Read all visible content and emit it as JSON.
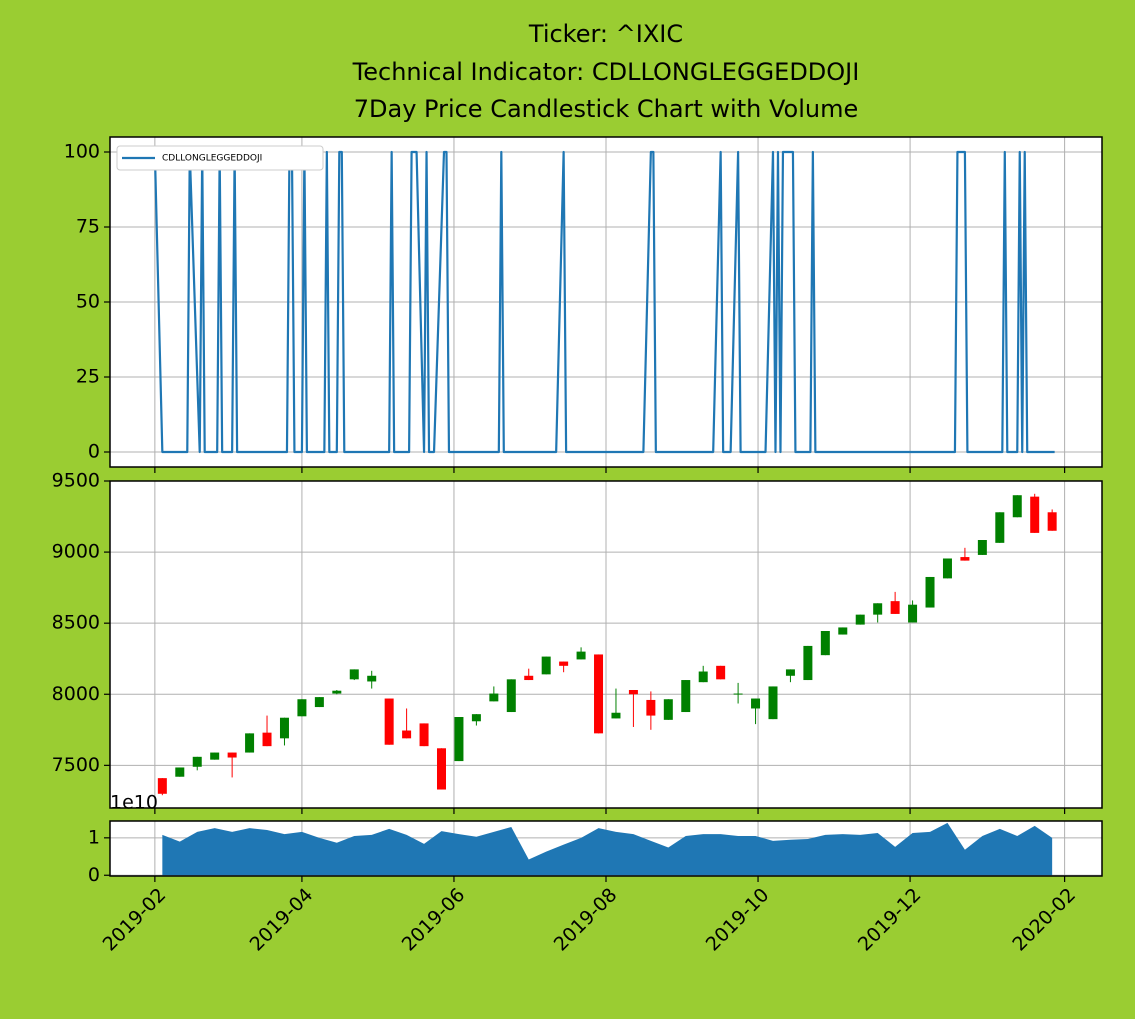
{
  "chart_data": [
    {
      "type": "line",
      "title": [
        "Ticker: ^IXIC",
        "Technical Indicator: CDLLONGLEGGEDDOJI",
        "7Day Price Candlestick Chart with Volume"
      ],
      "x": [
        "2019-02-01",
        "2019-02-04",
        "2019-02-14",
        "2019-02-15",
        "2019-02-19",
        "2019-02-20",
        "2019-02-21",
        "2019-02-26",
        "2019-02-27",
        "2019-02-28",
        "2019-03-04",
        "2019-03-05",
        "2019-03-06",
        "2019-03-26",
        "2019-03-27",
        "2019-03-28",
        "2019-03-29",
        "2019-04-01",
        "2019-04-02",
        "2019-04-03",
        "2019-04-10",
        "2019-04-11",
        "2019-04-12",
        "2019-04-15",
        "2019-04-16",
        "2019-04-17",
        "2019-04-18",
        "2019-05-06",
        "2019-05-07",
        "2019-05-08",
        "2019-05-14",
        "2019-05-15",
        "2019-05-17",
        "2019-05-20",
        "2019-05-21",
        "2019-05-22",
        "2019-05-24",
        "2019-05-28",
        "2019-05-29",
        "2019-05-30",
        "2019-06-19",
        "2019-06-20",
        "2019-06-21",
        "2019-07-12",
        "2019-07-15",
        "2019-07-16",
        "2019-08-16",
        "2019-08-19",
        "2019-08-20",
        "2019-08-21",
        "2019-09-13",
        "2019-09-16",
        "2019-09-17",
        "2019-09-20",
        "2019-09-23",
        "2019-09-24",
        "2019-10-04",
        "2019-10-07",
        "2019-10-08",
        "2019-10-09",
        "2019-10-10",
        "2019-10-11",
        "2019-10-15",
        "2019-10-16",
        "2019-10-22",
        "2019-10-23",
        "2019-10-24",
        "2019-12-19",
        "2019-12-20",
        "2019-12-23",
        "2019-12-24",
        "2020-01-07",
        "2020-01-08",
        "2020-01-09",
        "2020-01-13",
        "2020-01-14",
        "2020-01-15",
        "2020-01-16",
        "2020-01-17",
        "2020-01-28"
      ],
      "series": [
        {
          "name": "CDLLONGLEGGEDDOJI",
          "color": "#1f77b4",
          "values": [
            100,
            0,
            0,
            100,
            0,
            100,
            0,
            0,
            100,
            0,
            0,
            100,
            0,
            0,
            100,
            100,
            0,
            0,
            100,
            0,
            0,
            100,
            0,
            0,
            100,
            100,
            0,
            0,
            100,
            0,
            0,
            100,
            100,
            0,
            100,
            0,
            0,
            100,
            100,
            0,
            0,
            100,
            0,
            0,
            100,
            0,
            0,
            100,
            100,
            0,
            0,
            100,
            0,
            0,
            100,
            0,
            0,
            100,
            0,
            100,
            0,
            100,
            100,
            0,
            0,
            100,
            0,
            0,
            100,
            100,
            0,
            0,
            100,
            0,
            0,
            100,
            0,
            100,
            0,
            0
          ]
        }
      ],
      "xlim": [
        "2019-01-14",
        "2020-02-16"
      ],
      "xticks": [
        "2019-02",
        "2019-04",
        "2019-06",
        "2019-08",
        "2019-10",
        "2019-12",
        "2020-02"
      ],
      "ylim": [
        -5,
        105
      ],
      "yticks": [
        0,
        25,
        50,
        75,
        100
      ],
      "grid": true,
      "legend": "upper left"
    },
    {
      "type": "candlestick",
      "x": [
        "2019-02-04",
        "2019-02-11",
        "2019-02-18",
        "2019-02-25",
        "2019-03-04",
        "2019-03-11",
        "2019-03-18",
        "2019-03-25",
        "2019-04-01",
        "2019-04-08",
        "2019-04-15",
        "2019-04-22",
        "2019-04-29",
        "2019-05-06",
        "2019-05-13",
        "2019-05-20",
        "2019-05-27",
        "2019-06-03",
        "2019-06-10",
        "2019-06-17",
        "2019-06-24",
        "2019-07-01",
        "2019-07-08",
        "2019-07-15",
        "2019-07-22",
        "2019-07-29",
        "2019-08-05",
        "2019-08-12",
        "2019-08-19",
        "2019-08-26",
        "2019-09-02",
        "2019-09-09",
        "2019-09-16",
        "2019-09-23",
        "2019-09-30",
        "2019-10-07",
        "2019-10-14",
        "2019-10-21",
        "2019-10-28",
        "2019-11-04",
        "2019-11-11",
        "2019-11-18",
        "2019-11-25",
        "2019-12-02",
        "2019-12-09",
        "2019-12-16",
        "2019-12-23",
        "2019-12-30",
        "2020-01-06",
        "2020-01-13",
        "2020-01-20",
        "2020-01-27"
      ],
      "open": [
        7410,
        7420,
        7490,
        7540,
        7590,
        7590,
        7730,
        7690,
        7845,
        7910,
        8005,
        8105,
        8090,
        7970,
        7745,
        7795,
        7620,
        7530,
        7810,
        7950,
        7875,
        8130,
        8140,
        8230,
        8245,
        8280,
        7830,
        8030,
        7960,
        7820,
        7875,
        8085,
        8200,
        8000,
        7900,
        7825,
        8130,
        8100,
        8275,
        8420,
        8490,
        8560,
        8655,
        8505,
        8610,
        8815,
        8965,
        8980,
        9065,
        9245,
        9390,
        9280
      ],
      "high": [
        7410,
        7485,
        7560,
        7590,
        7590,
        7725,
        7850,
        7835,
        7965,
        7980,
        8030,
        8175,
        8165,
        7970,
        7900,
        7795,
        7620,
        7840,
        7860,
        8055,
        8105,
        8180,
        8265,
        8230,
        8330,
        8280,
        8040,
        8030,
        8020,
        7965,
        8100,
        8200,
        8200,
        8080,
        7970,
        8055,
        8175,
        8340,
        8445,
        8470,
        8560,
        8640,
        8720,
        8660,
        8825,
        8955,
        9030,
        9085,
        9280,
        9400,
        9410,
        9300
      ],
      "low": [
        7290,
        7420,
        7465,
        7540,
        7415,
        7590,
        7635,
        7640,
        7845,
        7910,
        8000,
        8100,
        8040,
        7645,
        7690,
        7635,
        7330,
        7530,
        7780,
        7950,
        7875,
        8100,
        8140,
        8155,
        8245,
        7725,
        7830,
        7770,
        7750,
        7820,
        7875,
        8085,
        8105,
        7935,
        7790,
        7825,
        8085,
        8100,
        8275,
        8420,
        8490,
        8505,
        8565,
        8505,
        8610,
        8815,
        8940,
        8980,
        9065,
        9245,
        9135,
        9150
      ],
      "close": [
        7300,
        7485,
        7560,
        7590,
        7555,
        7725,
        7635,
        7835,
        7965,
        7980,
        8025,
        8175,
        8130,
        7645,
        7690,
        7635,
        7330,
        7840,
        7860,
        8005,
        8105,
        8100,
        8265,
        8200,
        8300,
        7725,
        7870,
        8000,
        7850,
        7965,
        8100,
        8160,
        8105,
        8005,
        7970,
        8055,
        8175,
        8340,
        8445,
        8470,
        8560,
        8640,
        8565,
        8630,
        8825,
        8955,
        8940,
        9085,
        9280,
        9400,
        9135,
        9150
      ],
      "up_color": "green",
      "down_color": "red",
      "xlim": [
        "2019-01-14",
        "2020-02-16"
      ],
      "xticks": [
        "2019-02",
        "2019-04",
        "2019-06",
        "2019-08",
        "2019-10",
        "2019-12",
        "2020-02"
      ],
      "ylim": [
        7200,
        9500
      ],
      "yticks": [
        7500,
        8000,
        8500,
        9000,
        9500
      ],
      "grid": true
    },
    {
      "type": "area",
      "x": [
        "2019-02-04",
        "2019-02-11",
        "2019-02-18",
        "2019-02-25",
        "2019-03-04",
        "2019-03-11",
        "2019-03-18",
        "2019-03-25",
        "2019-04-01",
        "2019-04-08",
        "2019-04-15",
        "2019-04-22",
        "2019-04-29",
        "2019-05-06",
        "2019-05-13",
        "2019-05-20",
        "2019-05-27",
        "2019-06-03",
        "2019-06-10",
        "2019-06-17",
        "2019-06-24",
        "2019-07-01",
        "2019-07-08",
        "2019-07-15",
        "2019-07-22",
        "2019-07-29",
        "2019-08-05",
        "2019-08-12",
        "2019-08-19",
        "2019-08-26",
        "2019-09-02",
        "2019-09-09",
        "2019-09-16",
        "2019-09-23",
        "2019-09-30",
        "2019-10-07",
        "2019-10-14",
        "2019-10-21",
        "2019-10-28",
        "2019-11-04",
        "2019-11-11",
        "2019-11-18",
        "2019-11-25",
        "2019-12-02",
        "2019-12-09",
        "2019-12-16",
        "2019-12-23",
        "2019-12-30",
        "2020-01-06",
        "2020-01-13",
        "2020-01-20",
        "2020-01-27"
      ],
      "values": [
        1.08,
        0.9,
        1.16,
        1.26,
        1.16,
        1.26,
        1.21,
        1.1,
        1.16,
        1.0,
        0.87,
        1.05,
        1.08,
        1.24,
        1.08,
        0.84,
        1.18,
        1.1,
        1.03,
        1.16,
        1.29,
        0.42,
        0.63,
        0.82,
        1.0,
        1.26,
        1.16,
        1.1,
        0.92,
        0.74,
        1.05,
        1.1,
        1.1,
        1.05,
        1.05,
        0.92,
        0.95,
        0.97,
        1.08,
        1.1,
        1.08,
        1.13,
        0.76,
        1.13,
        1.16,
        1.4,
        0.68,
        1.05,
        1.24,
        1.05,
        1.32,
        1.0
      ],
      "color": "#1f77b4",
      "y_offset_label": "1e10",
      "xlim": [
        "2019-01-14",
        "2020-02-16"
      ],
      "xticks": [
        "2019-02",
        "2019-04",
        "2019-06",
        "2019-08",
        "2019-10",
        "2019-12",
        "2020-02"
      ],
      "ylim": [
        -0.02,
        1.45
      ],
      "yticks": [
        0,
        1
      ],
      "grid": true
    }
  ]
}
